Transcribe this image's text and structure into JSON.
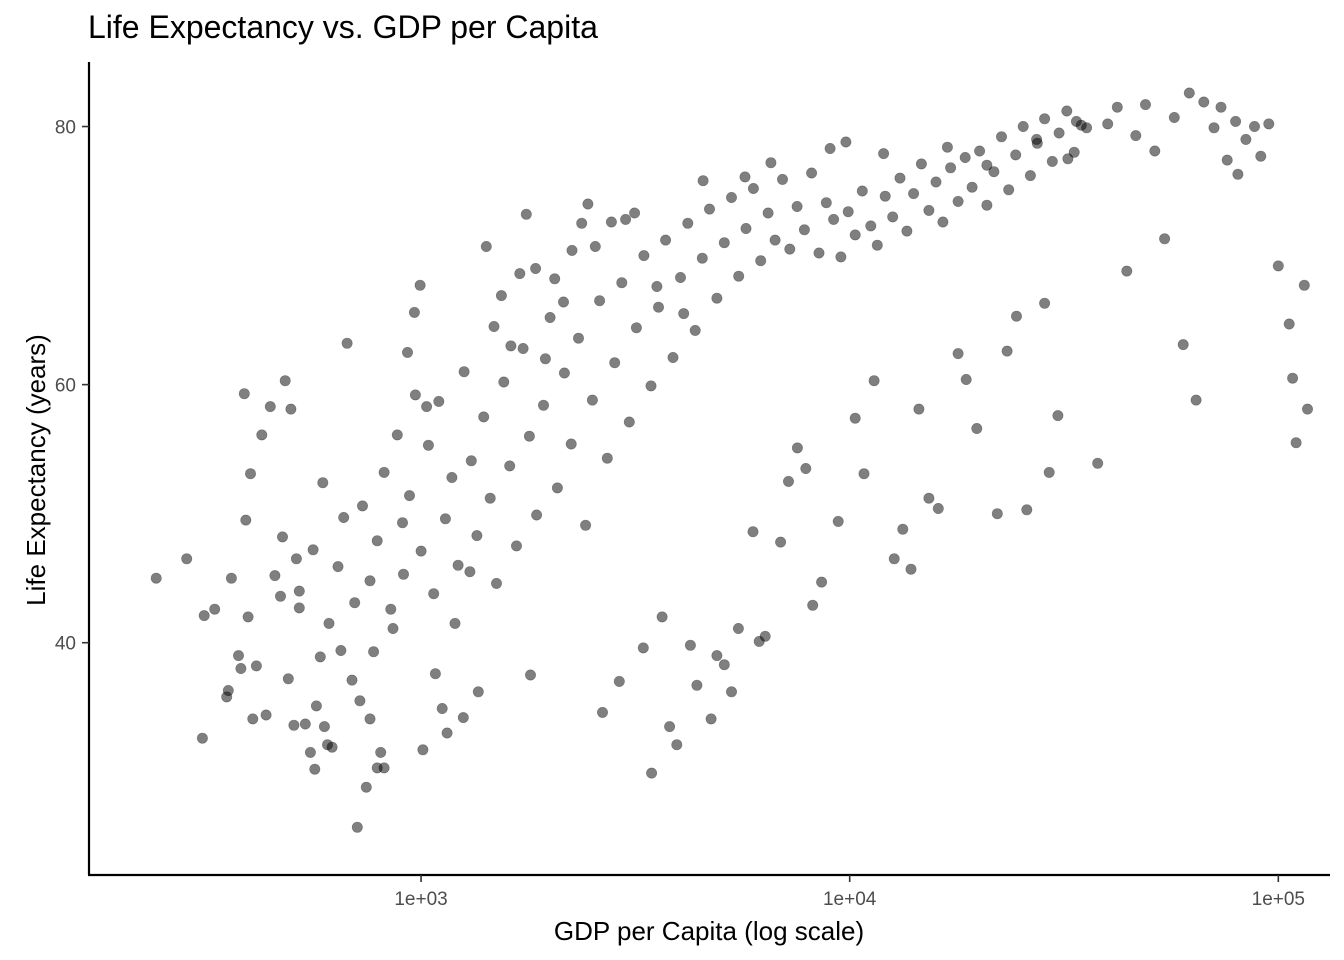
{
  "chart_data": {
    "type": "scatter",
    "title": "Life Expectancy vs. GDP per Capita",
    "xlabel": "GDP per Capita (log scale)",
    "ylabel": "Life Expectancy (years)",
    "x_scale": "log10",
    "xlim": [
      168,
      132000
    ],
    "ylim": [
      22,
      85
    ],
    "x_ticks": [
      {
        "value": 1000,
        "label": "1e+03"
      },
      {
        "value": 10000,
        "label": "1e+04"
      },
      {
        "value": 100000,
        "label": "1e+05"
      }
    ],
    "y_ticks": [
      {
        "value": 40,
        "label": "40"
      },
      {
        "value": 60,
        "label": "60"
      },
      {
        "value": 80,
        "label": "80"
      }
    ],
    "grid": false,
    "legend": "none",
    "point_color": "#000000",
    "point_alpha": 0.5,
    "points": [
      [
        241,
        45.0
      ],
      [
        284,
        46.5
      ],
      [
        309,
        32.6
      ],
      [
        312,
        42.1
      ],
      [
        330,
        42.6
      ],
      [
        352,
        35.8
      ],
      [
        355,
        36.3
      ],
      [
        361,
        45.0
      ],
      [
        375,
        39.0
      ],
      [
        380,
        38.0
      ],
      [
        387,
        59.3
      ],
      [
        390,
        49.5
      ],
      [
        395,
        42.0
      ],
      [
        400,
        53.1
      ],
      [
        405,
        34.1
      ],
      [
        413,
        38.2
      ],
      [
        425,
        56.1
      ],
      [
        435,
        34.4
      ],
      [
        445,
        58.3
      ],
      [
        456,
        45.2
      ],
      [
        470,
        43.6
      ],
      [
        475,
        48.2
      ],
      [
        482,
        60.3
      ],
      [
        490,
        37.2
      ],
      [
        497,
        58.1
      ],
      [
        505,
        33.6
      ],
      [
        512,
        46.5
      ],
      [
        520,
        42.7
      ],
      [
        537,
        33.7
      ],
      [
        552,
        31.5
      ],
      [
        565,
        30.2
      ],
      [
        570,
        35.1
      ],
      [
        582,
        38.9
      ],
      [
        595,
        33.5
      ],
      [
        605,
        32.1
      ],
      [
        620,
        31.9
      ],
      [
        650,
        39.4
      ],
      [
        672,
        63.2
      ],
      [
        690,
        37.1
      ],
      [
        710,
        25.7
      ],
      [
        720,
        35.5
      ],
      [
        745,
        28.8
      ],
      [
        760,
        34.1
      ],
      [
        775,
        39.3
      ],
      [
        790,
        30.3
      ],
      [
        805,
        31.5
      ],
      [
        820,
        30.3
      ],
      [
        860,
        41.1
      ],
      [
        905,
        49.3
      ],
      [
        930,
        62.5
      ],
      [
        965,
        65.6
      ],
      [
        995,
        67.7
      ],
      [
        1010,
        31.7
      ],
      [
        1030,
        58.3
      ],
      [
        1080,
        37.6
      ],
      [
        1120,
        34.9
      ],
      [
        1150,
        33.0
      ],
      [
        1200,
        41.5
      ],
      [
        1255,
        34.2
      ],
      [
        1300,
        45.5
      ],
      [
        1360,
        36.2
      ],
      [
        1420,
        70.7
      ],
      [
        1480,
        64.5
      ],
      [
        1540,
        66.9
      ],
      [
        1620,
        63.0
      ],
      [
        1700,
        68.6
      ],
      [
        1760,
        73.2
      ],
      [
        1800,
        37.5
      ],
      [
        1850,
        69.0
      ],
      [
        1950,
        62.0
      ],
      [
        2050,
        68.2
      ],
      [
        2150,
        66.4
      ],
      [
        2250,
        70.4
      ],
      [
        2370,
        72.5
      ],
      [
        2450,
        74.0
      ],
      [
        2550,
        70.7
      ],
      [
        2650,
        34.6
      ],
      [
        2780,
        72.6
      ],
      [
        2900,
        37.0
      ],
      [
        3000,
        72.8
      ],
      [
        3150,
        73.3
      ],
      [
        3300,
        39.6
      ],
      [
        3450,
        29.9
      ],
      [
        3550,
        67.6
      ],
      [
        3650,
        42.0
      ],
      [
        3800,
        33.5
      ],
      [
        3950,
        32.1
      ],
      [
        4100,
        65.5
      ],
      [
        4250,
        39.8
      ],
      [
        4400,
        36.7
      ],
      [
        4550,
        75.8
      ],
      [
        4750,
        34.1
      ],
      [
        4900,
        39.0
      ],
      [
        5100,
        38.3
      ],
      [
        5300,
        36.2
      ],
      [
        5500,
        41.1
      ],
      [
        5700,
        76.1
      ],
      [
        5950,
        48.6
      ],
      [
        6150,
        40.1
      ],
      [
        6350,
        40.5
      ],
      [
        6550,
        77.2
      ],
      [
        6900,
        47.8
      ],
      [
        7200,
        52.5
      ],
      [
        7550,
        55.1
      ],
      [
        7900,
        53.5
      ],
      [
        8200,
        42.9
      ],
      [
        8600,
        44.7
      ],
      [
        9000,
        78.3
      ],
      [
        9400,
        49.4
      ],
      [
        9800,
        78.8
      ],
      [
        10300,
        57.4
      ],
      [
        10800,
        53.1
      ],
      [
        11400,
        60.3
      ],
      [
        12000,
        77.9
      ],
      [
        12700,
        46.5
      ],
      [
        13300,
        48.8
      ],
      [
        13900,
        45.7
      ],
      [
        14500,
        58.1
      ],
      [
        15300,
        51.2
      ],
      [
        16100,
        50.4
      ],
      [
        16900,
        78.4
      ],
      [
        17900,
        62.4
      ],
      [
        18700,
        60.4
      ],
      [
        19800,
        56.6
      ],
      [
        20900,
        77.0
      ],
      [
        22100,
        50.0
      ],
      [
        23300,
        62.6
      ],
      [
        24500,
        65.3
      ],
      [
        25900,
        50.3
      ],
      [
        27300,
        79.0
      ],
      [
        28500,
        66.3
      ],
      [
        29200,
        53.2
      ],
      [
        30600,
        57.6
      ],
      [
        32300,
        77.5
      ],
      [
        33800,
        80.4
      ],
      [
        35700,
        79.9
      ],
      [
        37900,
        53.9
      ],
      [
        40000,
        80.2
      ],
      [
        42100,
        81.5
      ],
      [
        44300,
        68.8
      ],
      [
        46500,
        79.3
      ],
      [
        49000,
        81.7
      ],
      [
        51500,
        78.1
      ],
      [
        54300,
        71.3
      ],
      [
        57200,
        80.7
      ],
      [
        60000,
        63.1
      ],
      [
        62000,
        82.6
      ],
      [
        64300,
        58.8
      ],
      [
        67000,
        81.9
      ],
      [
        70800,
        79.9
      ],
      [
        73500,
        81.5
      ],
      [
        76000,
        77.4
      ],
      [
        79500,
        80.4
      ],
      [
        80500,
        76.3
      ],
      [
        84000,
        79.0
      ],
      [
        88000,
        80.0
      ],
      [
        91000,
        77.7
      ],
      [
        95000,
        80.2
      ],
      [
        100000,
        69.2
      ],
      [
        106000,
        64.7
      ],
      [
        108000,
        60.5
      ],
      [
        110000,
        55.5
      ],
      [
        115000,
        67.7
      ],
      [
        117000,
        58.1
      ],
      [
        520,
        44.0
      ],
      [
        560,
        47.2
      ],
      [
        590,
        52.4
      ],
      [
        610,
        41.5
      ],
      [
        640,
        45.9
      ],
      [
        660,
        49.7
      ],
      [
        700,
        43.1
      ],
      [
        730,
        50.6
      ],
      [
        760,
        44.8
      ],
      [
        790,
        47.9
      ],
      [
        820,
        53.2
      ],
      [
        850,
        42.6
      ],
      [
        880,
        56.1
      ],
      [
        910,
        45.3
      ],
      [
        940,
        51.4
      ],
      [
        970,
        59.2
      ],
      [
        1000,
        47.1
      ],
      [
        1040,
        55.3
      ],
      [
        1070,
        43.8
      ],
      [
        1100,
        58.7
      ],
      [
        1140,
        49.6
      ],
      [
        1180,
        52.8
      ],
      [
        1220,
        46.0
      ],
      [
        1260,
        61.0
      ],
      [
        1310,
        54.1
      ],
      [
        1350,
        48.3
      ],
      [
        1400,
        57.5
      ],
      [
        1450,
        51.2
      ],
      [
        1500,
        44.6
      ],
      [
        1560,
        60.2
      ],
      [
        1610,
        53.7
      ],
      [
        1670,
        47.5
      ],
      [
        1730,
        62.8
      ],
      [
        1790,
        56.0
      ],
      [
        1860,
        49.9
      ],
      [
        1930,
        58.4
      ],
      [
        2000,
        65.2
      ],
      [
        2080,
        52.0
      ],
      [
        2160,
        60.9
      ],
      [
        2240,
        55.4
      ],
      [
        2330,
        63.6
      ],
      [
        2420,
        49.1
      ],
      [
        2510,
        58.8
      ],
      [
        2610,
        66.5
      ],
      [
        2720,
        54.3
      ],
      [
        2830,
        61.7
      ],
      [
        2940,
        67.9
      ],
      [
        3060,
        57.1
      ],
      [
        3180,
        64.4
      ],
      [
        3310,
        70.0
      ],
      [
        3440,
        59.9
      ],
      [
        3580,
        66.0
      ],
      [
        3720,
        71.2
      ],
      [
        3870,
        62.1
      ],
      [
        4030,
        68.3
      ],
      [
        4190,
        72.5
      ],
      [
        4360,
        64.2
      ],
      [
        4530,
        69.8
      ],
      [
        4710,
        73.6
      ],
      [
        4900,
        66.7
      ],
      [
        5100,
        71.0
      ],
      [
        5300,
        74.5
      ],
      [
        5510,
        68.4
      ],
      [
        5730,
        72.1
      ],
      [
        5960,
        75.2
      ],
      [
        6200,
        69.6
      ],
      [
        6450,
        73.3
      ],
      [
        6700,
        71.2
      ],
      [
        6970,
        75.9
      ],
      [
        7250,
        70.5
      ],
      [
        7540,
        73.8
      ],
      [
        7840,
        72.0
      ],
      [
        8150,
        76.4
      ],
      [
        8480,
        70.2
      ],
      [
        8820,
        74.1
      ],
      [
        9170,
        72.8
      ],
      [
        9540,
        69.9
      ],
      [
        9920,
        73.4
      ],
      [
        10300,
        71.6
      ],
      [
        10700,
        75.0
      ],
      [
        11200,
        72.3
      ],
      [
        11600,
        70.8
      ],
      [
        12100,
        74.6
      ],
      [
        12600,
        73.0
      ],
      [
        13100,
        76.0
      ],
      [
        13600,
        71.9
      ],
      [
        14100,
        74.8
      ],
      [
        14700,
        77.1
      ],
      [
        15300,
        73.5
      ],
      [
        15900,
        75.7
      ],
      [
        16500,
        72.6
      ],
      [
        17200,
        76.8
      ],
      [
        17900,
        74.2
      ],
      [
        18600,
        77.6
      ],
      [
        19300,
        75.3
      ],
      [
        20100,
        78.1
      ],
      [
        20900,
        73.9
      ],
      [
        21700,
        76.5
      ],
      [
        22600,
        79.2
      ],
      [
        23500,
        75.1
      ],
      [
        24400,
        77.8
      ],
      [
        25400,
        80.0
      ],
      [
        26400,
        76.2
      ],
      [
        27400,
        78.7
      ],
      [
        28500,
        80.6
      ],
      [
        29700,
        77.3
      ],
      [
        30800,
        79.5
      ],
      [
        32100,
        81.2
      ],
      [
        33400,
        78.0
      ],
      [
        34700,
        80.1
      ]
    ]
  }
}
